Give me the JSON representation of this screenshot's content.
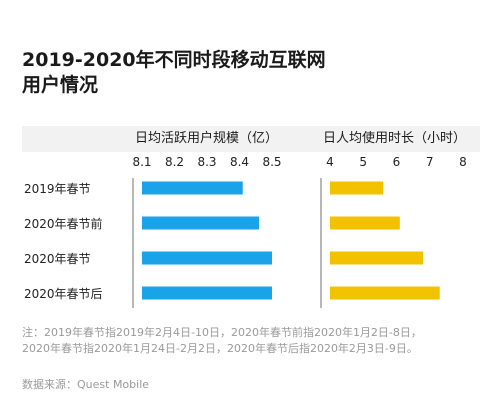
{
  "title_lines": [
    "2019-2020年不同时段移动互联网",
    "用户情况"
  ],
  "colors": {
    "dau": "#1aa3e8",
    "time": "#f2c200",
    "axis": "#888888"
  },
  "chart_data": [
    {
      "type": "bar",
      "orientation": "horizontal",
      "title": "日均活跃用户规模（亿）",
      "categories": [
        "2019年春节",
        "2020年春节前",
        "2020年春节",
        "2020年春节后"
      ],
      "values": [
        8.41,
        8.46,
        8.5,
        8.5
      ],
      "xlim": [
        8.1,
        8.5
      ],
      "ticks": [
        "8.1",
        "8.2",
        "8.3",
        "8.4",
        "8.5"
      ]
    },
    {
      "type": "bar",
      "orientation": "horizontal",
      "title": "日人均使用时长（小时）",
      "categories": [
        "2019年春节",
        "2020年春节前",
        "2020年春节",
        "2020年春节后"
      ],
      "values": [
        5.6,
        6.1,
        6.8,
        7.3
      ],
      "xlim": [
        4,
        8
      ],
      "ticks": [
        "4",
        "5",
        "6",
        "7",
        "8"
      ]
    }
  ],
  "note_lines": [
    "注：2019年春节指2019年2月4日-10日，2020年春节前指2020年1月2日-8日，",
    "2020年春节指2020年1月24日-2月2日，2020年春节后指2020年2月3日-9日。"
  ],
  "source": "数据来源：Quest Mobile"
}
